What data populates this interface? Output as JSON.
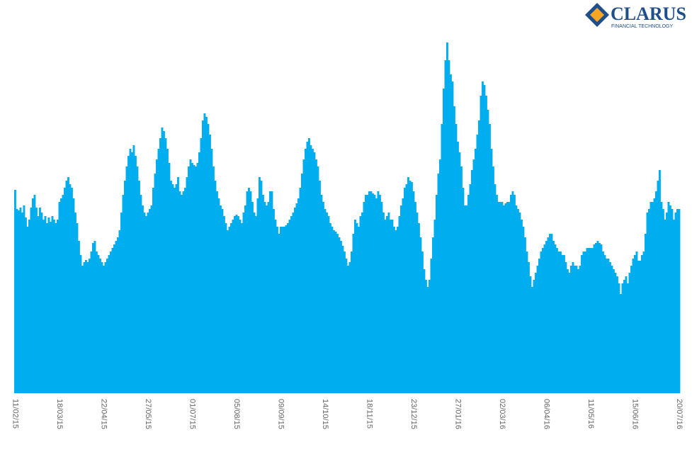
{
  "logo": {
    "name": "CLARUS",
    "tagline": "FINANCIAL TECHNOLOGY"
  },
  "chart_data": {
    "type": "bar",
    "color": "#00aeef",
    "ylim": [
      0,
      535
    ],
    "categories": [
      "11/02/15",
      null,
      null,
      null,
      null,
      null,
      null,
      null,
      null,
      null,
      null,
      null,
      null,
      null,
      null,
      null,
      null,
      null,
      null,
      null,
      null,
      null,
      null,
      null,
      null,
      "18/03/15",
      null,
      null,
      null,
      null,
      null,
      null,
      null,
      null,
      null,
      null,
      null,
      null,
      null,
      null,
      null,
      null,
      null,
      null,
      null,
      null,
      null,
      null,
      null,
      null,
      "22/04/15",
      null,
      null,
      null,
      null,
      null,
      null,
      null,
      null,
      null,
      null,
      null,
      null,
      null,
      null,
      null,
      null,
      null,
      null,
      null,
      null,
      null,
      null,
      null,
      null,
      "27/05/15",
      null,
      null,
      null,
      null,
      null,
      null,
      null,
      null,
      null,
      null,
      null,
      null,
      null,
      null,
      null,
      null,
      null,
      null,
      null,
      null,
      null,
      null,
      null,
      null,
      "01/07/15",
      null,
      null,
      null,
      null,
      null,
      null,
      null,
      null,
      null,
      null,
      null,
      null,
      null,
      null,
      null,
      null,
      null,
      null,
      null,
      null,
      null,
      null,
      null,
      null,
      "05/08/15",
      null,
      null,
      null,
      null,
      null,
      null,
      null,
      null,
      null,
      null,
      null,
      null,
      null,
      null,
      null,
      null,
      null,
      null,
      null,
      null,
      null,
      null,
      null,
      null,
      "09/09/15",
      null,
      null,
      null,
      null,
      null,
      null,
      null,
      null,
      null,
      null,
      null,
      null,
      null,
      null,
      null,
      null,
      null,
      null,
      null,
      null,
      null,
      null,
      null,
      null,
      "14/10/15",
      null,
      null,
      null,
      null,
      null,
      null,
      null,
      null,
      null,
      null,
      null,
      null,
      null,
      null,
      null,
      null,
      null,
      null,
      null,
      null,
      null,
      null,
      null,
      null,
      "18/11/15",
      null,
      null,
      null,
      null,
      null,
      null,
      null,
      null,
      null,
      null,
      null,
      null,
      null,
      null,
      null,
      null,
      null,
      null,
      null,
      null,
      null,
      null,
      null,
      null,
      "23/12/15",
      null,
      null,
      null,
      null,
      null,
      null,
      null,
      null,
      null,
      null,
      null,
      null,
      null,
      null,
      null,
      null,
      null,
      null,
      null,
      null,
      null,
      null,
      null,
      null,
      "27/01/16",
      null,
      null,
      null,
      null,
      null,
      null,
      null,
      null,
      null,
      null,
      null,
      null,
      null,
      null,
      null,
      null,
      null,
      null,
      null,
      null,
      null,
      null,
      null,
      null,
      "02/03/16",
      null,
      null,
      null,
      null,
      null,
      null,
      null,
      null,
      null,
      null,
      null,
      null,
      null,
      null,
      null,
      null,
      null,
      null,
      null,
      null,
      null,
      null,
      null,
      null,
      "06/04/16",
      null,
      null,
      null,
      null,
      null,
      null,
      null,
      null,
      null,
      null,
      null,
      null,
      null,
      null,
      null,
      null,
      null,
      null,
      null,
      null,
      null,
      null,
      null,
      null,
      "11/05/16",
      null,
      null,
      null,
      null,
      null,
      null,
      null,
      null,
      null,
      null,
      null,
      null,
      null,
      null,
      null,
      null,
      null,
      null,
      null,
      null,
      null,
      null,
      null,
      null,
      "15/06/16",
      null,
      null,
      null,
      null,
      null,
      null,
      null,
      null,
      null,
      null,
      null,
      null,
      null,
      null,
      null,
      null,
      null,
      null,
      null,
      null,
      null,
      null,
      null,
      null,
      "20/07/16"
    ],
    "values": [
      287,
      260,
      258,
      262,
      255,
      265,
      248,
      235,
      245,
      262,
      275,
      280,
      262,
      250,
      262,
      255,
      245,
      250,
      240,
      248,
      242,
      250,
      245,
      240,
      245,
      270,
      275,
      280,
      290,
      300,
      305,
      295,
      290,
      275,
      255,
      240,
      215,
      195,
      180,
      185,
      188,
      185,
      190,
      200,
      212,
      215,
      200,
      195,
      190,
      185,
      180,
      185,
      190,
      195,
      200,
      205,
      210,
      215,
      220,
      230,
      255,
      280,
      300,
      320,
      335,
      345,
      340,
      350,
      335,
      320,
      300,
      280,
      265,
      255,
      250,
      255,
      260,
      265,
      290,
      310,
      330,
      345,
      360,
      375,
      370,
      360,
      345,
      325,
      300,
      295,
      290,
      295,
      305,
      285,
      280,
      285,
      290,
      305,
      320,
      330,
      325,
      322,
      320,
      325,
      340,
      360,
      385,
      395,
      390,
      380,
      365,
      345,
      320,
      300,
      285,
      275,
      265,
      260,
      250,
      240,
      230,
      235,
      240,
      245,
      250,
      252,
      250,
      245,
      240,
      255,
      265,
      285,
      290,
      285,
      270,
      255,
      250,
      275,
      305,
      300,
      280,
      270,
      265,
      270,
      285,
      285,
      260,
      245,
      235,
      225,
      235,
      235,
      235,
      237,
      240,
      245,
      250,
      255,
      262,
      268,
      275,
      290,
      310,
      330,
      345,
      355,
      360,
      350,
      345,
      340,
      330,
      320,
      300,
      280,
      270,
      260,
      255,
      250,
      240,
      235,
      230,
      228,
      225,
      220,
      215,
      208,
      200,
      190,
      180,
      185,
      200,
      225,
      245,
      240,
      235,
      250,
      255,
      270,
      280,
      280,
      285,
      285,
      282,
      280,
      275,
      285,
      280,
      270,
      255,
      245,
      250,
      255,
      245,
      245,
      235,
      230,
      235,
      250,
      265,
      275,
      290,
      295,
      305,
      300,
      298,
      285,
      270,
      255,
      240,
      220,
      200,
      175,
      160,
      150,
      160,
      190,
      220,
      245,
      280,
      310,
      330,
      380,
      430,
      470,
      495,
      470,
      450,
      440,
      405,
      380,
      355,
      340,
      320,
      290,
      265,
      265,
      280,
      295,
      315,
      330,
      345,
      365,
      385,
      420,
      440,
      435,
      420,
      400,
      380,
      345,
      320,
      295,
      280,
      270,
      270,
      270,
      265,
      268,
      270,
      270,
      280,
      285,
      280,
      265,
      260,
      255,
      245,
      235,
      220,
      200,
      185,
      165,
      150,
      160,
      170,
      180,
      190,
      200,
      205,
      210,
      215,
      220,
      225,
      225,
      215,
      210,
      205,
      200,
      200,
      195,
      195,
      185,
      175,
      170,
      180,
      185,
      180,
      180,
      175,
      180,
      195,
      200,
      200,
      205,
      205,
      205,
      205,
      210,
      212,
      215,
      212,
      210,
      200,
      195,
      190,
      190,
      185,
      180,
      175,
      170,
      165,
      155,
      140,
      155,
      160,
      165,
      155,
      170,
      180,
      190,
      195,
      200,
      187,
      187,
      195,
      200,
      225,
      255,
      260,
      270,
      270,
      275,
      285,
      300,
      315,
      270,
      260,
      245,
      255,
      270,
      265,
      260,
      245,
      255,
      260,
      260
    ]
  }
}
